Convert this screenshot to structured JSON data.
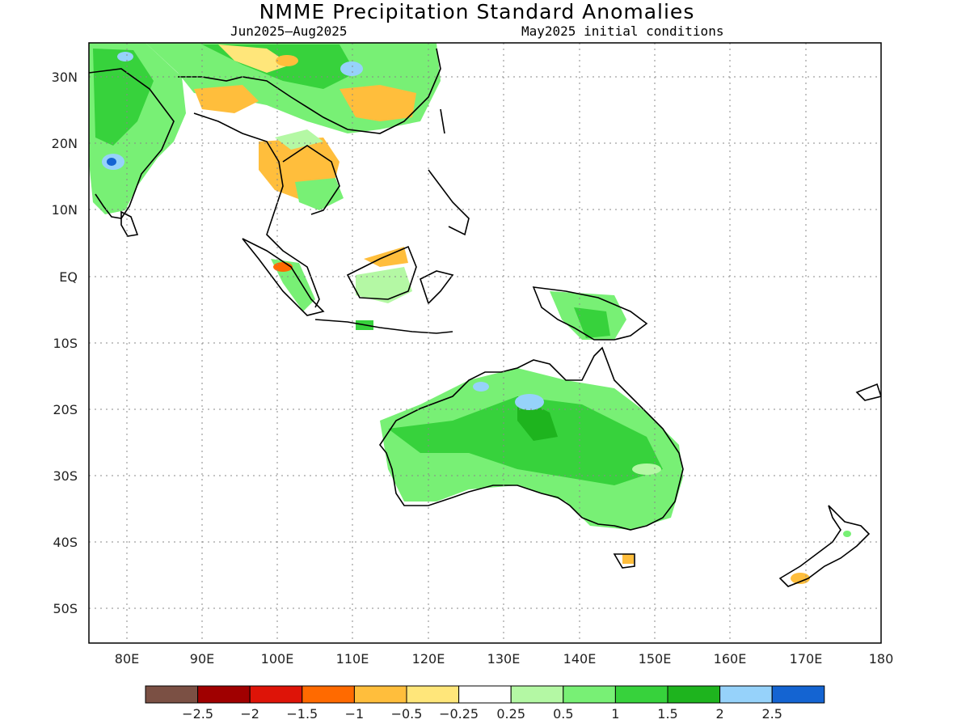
{
  "title": "NMME Precipitation Standard Anomalies",
  "subtitle_left": "Jun2025–Aug2025",
  "subtitle_right": "May2025 initial conditions",
  "lat_labels": [
    "30N",
    "20N",
    "10N",
    "EQ",
    "10S",
    "20S",
    "30S",
    "40S",
    "50S"
  ],
  "lon_labels": [
    "80E",
    "90E",
    "100E",
    "110E",
    "120E",
    "130E",
    "140E",
    "150E",
    "160E",
    "170E",
    "180"
  ],
  "colorbar": {
    "labels": [
      "−2.5",
      "−2",
      "−1.5",
      "−1",
      "−0.5",
      "−0.25",
      "0.25",
      "0.5",
      "1",
      "1.5",
      "2",
      "2.5"
    ],
    "colors": [
      "#7b5044",
      "#a00000",
      "#de1408",
      "#ff6a00",
      "#ffbe3c",
      "#ffe67a",
      "#ffffff",
      "#b4f8a4",
      "#78f075",
      "#37d23c",
      "#1eb41e",
      "#96d2fa",
      "#1464d2"
    ]
  }
}
